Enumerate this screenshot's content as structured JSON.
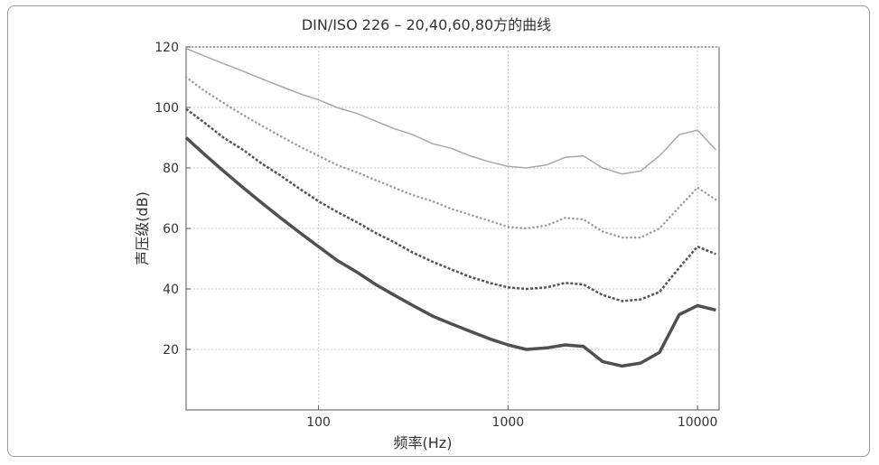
{
  "chart_data": {
    "type": "line",
    "title": "DIN/ISO 226 – 20,40,60,80方的曲线",
    "xlabel": "频率(Hz)",
    "ylabel": "声压级(dB)",
    "x_scale": "log",
    "xlim": [
      20,
      13000
    ],
    "ylim": [
      0,
      120
    ],
    "x_ticks": [
      100,
      1000,
      10000
    ],
    "x_tick_labels": [
      "100",
      "1000",
      "10000"
    ],
    "y_ticks": [
      20,
      40,
      60,
      80,
      100,
      120
    ],
    "y_tick_labels": [
      "20",
      "40",
      "60",
      "80",
      "100",
      "120"
    ],
    "grid": true,
    "x": [
      20,
      25,
      31.5,
      40,
      50,
      63,
      80,
      100,
      125,
      160,
      200,
      250,
      315,
      400,
      500,
      630,
      800,
      1000,
      1250,
      1600,
      2000,
      2500,
      3150,
      4000,
      5000,
      6300,
      8000,
      10000,
      12500
    ],
    "series": [
      {
        "style": "solid",
        "color": "#a8a8a8",
        "values": [
          119.5,
          117,
          114.5,
          112,
          109.5,
          107,
          104.5,
          102.5,
          100,
          98,
          95.5,
          93,
          91,
          88,
          86.5,
          84,
          82,
          80.5,
          80,
          81,
          83.5,
          84,
          80,
          78,
          79,
          84,
          91,
          92.5,
          86
        ]
      },
      {
        "style": "dotted",
        "color": "#9a9a9a",
        "values": [
          110,
          105.5,
          101.5,
          97.5,
          94,
          90.5,
          87,
          84,
          81,
          78.5,
          76,
          73.5,
          71,
          69,
          66.5,
          64.5,
          62.5,
          60.5,
          60,
          61,
          63.5,
          63,
          59,
          57,
          57,
          60,
          67,
          73.5,
          69.5
        ]
      },
      {
        "style": "dashed",
        "color": "#555555",
        "values": [
          99.5,
          95,
          90,
          86,
          81.5,
          77.5,
          73,
          69,
          65.5,
          62,
          58.5,
          55.5,
          52,
          49,
          46.5,
          44,
          42,
          40.5,
          40,
          40.5,
          42,
          41.5,
          38,
          36,
          36.5,
          39,
          47,
          54,
          51.5
        ]
      },
      {
        "style": "solid",
        "color": "#505050",
        "values": [
          90,
          84.5,
          79,
          73.5,
          68.5,
          63.5,
          58.5,
          54,
          49.5,
          45.5,
          41.5,
          38,
          34.5,
          31,
          28.5,
          26,
          23.5,
          21.5,
          20,
          20.5,
          21.5,
          21,
          16,
          14.5,
          15.5,
          19,
          31.5,
          34.5,
          33
        ]
      }
    ]
  }
}
